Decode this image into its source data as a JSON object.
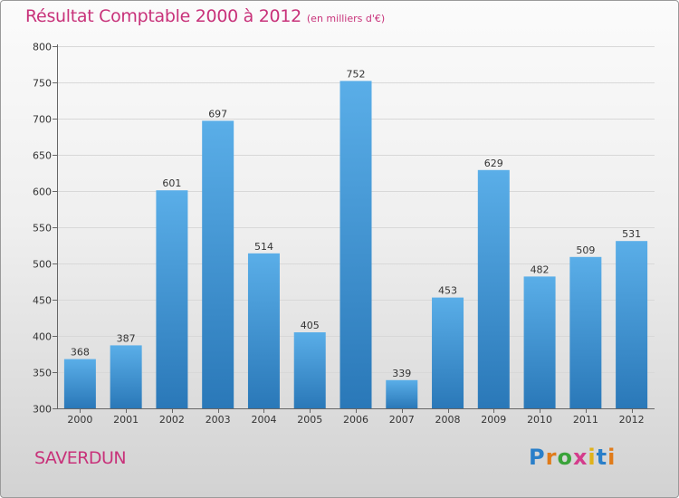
{
  "header": {
    "title": "Résultat Comptable 2000 à 2012",
    "subtitle": "(en milliers d'€)"
  },
  "footer": {
    "commune": "SAVERDUN",
    "logo": [
      "P",
      "r",
      "o",
      "x",
      "i",
      "t",
      "i"
    ],
    "logo_colors": [
      "#2a7fc9",
      "#e07b1a",
      "#3aa33a",
      "#d43c8c",
      "#e0b21a",
      "#2a7fc9",
      "#e07b1a"
    ]
  },
  "colors": {
    "bar_top": "#5aaee8",
    "bar_bottom": "#2a78b8",
    "axis": "#666666",
    "grid": "#d8d8d8",
    "title": "#c8327a"
  },
  "chart_data": {
    "type": "bar",
    "title": "Résultat Comptable 2000 à 2012",
    "subtitle": "(en milliers d'€)",
    "xlabel": "",
    "ylabel": "",
    "categories": [
      "2000",
      "2001",
      "2002",
      "2003",
      "2004",
      "2005",
      "2006",
      "2007",
      "2008",
      "2009",
      "2010",
      "2011",
      "2012"
    ],
    "values": [
      368,
      387,
      601,
      697,
      514,
      405,
      752,
      339,
      453,
      629,
      482,
      509,
      531
    ],
    "ylim": [
      300,
      800
    ],
    "yticks": [
      300,
      350,
      400,
      450,
      500,
      550,
      600,
      650,
      700,
      750,
      800
    ],
    "grid": true
  }
}
